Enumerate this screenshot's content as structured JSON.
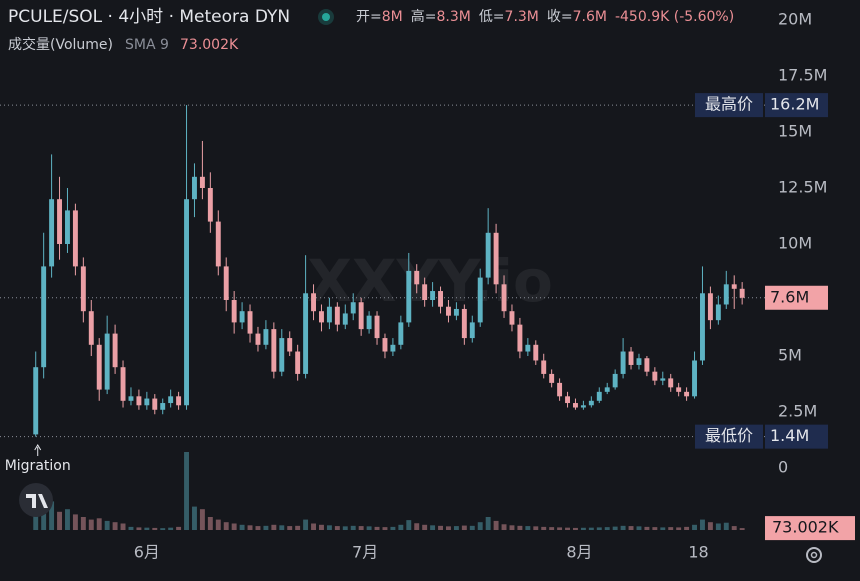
{
  "header": {
    "symbol": "PCULE/SOL · 4小时 · Meteora DYN",
    "stats": [
      {
        "label": "开=",
        "value": "8M"
      },
      {
        "label": "高=",
        "value": "8.3M"
      },
      {
        "label": "低=",
        "value": "7.3M"
      },
      {
        "label": "收=",
        "value": "7.6M"
      },
      {
        "label": "",
        "value": "-450.9K (-5.60%)"
      }
    ],
    "volume_title": "成交量(Volume)",
    "sma_name": "SMA 9",
    "sma_value": "73.002K",
    "watermark": "XXYY.io"
  },
  "chart_data": {
    "type": "candlestick",
    "open": [
      1.5,
      4.5,
      9,
      12,
      10,
      11.5,
      9,
      7,
      5.5,
      3.5,
      6,
      4.5,
      3,
      3.2,
      2.8,
      3.1,
      2.6,
      2.9,
      3.2,
      2.8,
      12,
      13,
      12.5,
      11,
      9,
      7.5,
      6.5,
      7,
      6,
      5.5,
      6.2,
      4.3,
      5.8,
      5.2,
      4.2,
      7.8,
      7,
      6.5,
      7.2,
      6.4,
      6.9,
      7.4,
      6.2,
      6.8,
      5.8,
      5.2,
      5.5,
      6.5,
      8.8,
      8.2,
      7.5,
      7.9,
      7.2,
      6.8,
      7.1,
      5.8,
      6.5,
      8.5,
      10.5,
      8.2,
      7,
      6.4,
      5.2,
      5.5,
      4.8,
      4.2,
      3.8,
      3.2,
      2.9,
      2.7,
      2.8,
      3,
      3.4,
      3.6,
      4.2,
      5.2,
      4.6,
      4.9,
      4.3,
      3.9,
      4,
      3.6,
      3.4,
      3.2,
      4.8,
      7.8,
      6.6,
      7.3,
      8.2,
      8
    ],
    "high": [
      5.2,
      10.5,
      14,
      13,
      12.5,
      11.8,
      9.4,
      7.5,
      5.8,
      6.8,
      6.4,
      4.8,
      3.6,
      3.5,
      3.4,
      3.3,
      3.1,
      3.5,
      3.4,
      16.2,
      13.6,
      14.6,
      13.2,
      11.5,
      9.4,
      7.9,
      7.4,
      7.3,
      6.3,
      6.6,
      6.5,
      6.2,
      6.1,
      5.5,
      9.5,
      8.2,
      7.3,
      7.6,
      7.4,
      7.3,
      7.8,
      7.6,
      7,
      7,
      6,
      5.8,
      6.8,
      9.6,
      9.1,
      8.5,
      8.3,
      8.1,
      7.5,
      7.4,
      7.3,
      6.8,
      8.9,
      11.6,
      10.9,
      8.6,
      7.3,
      6.7,
      5.8,
      5.7,
      5.1,
      4.4,
      4,
      3.4,
      3.1,
      3,
      3.2,
      3.6,
      3.8,
      4.4,
      5.8,
      5.4,
      5.1,
      5,
      4.5,
      4.3,
      4.2,
      3.8,
      3.6,
      5.2,
      9,
      8.1,
      7.7,
      8.8,
      8.6,
      8.3
    ],
    "low": [
      1.4,
      4,
      8.5,
      9.3,
      9.6,
      8.6,
      6.5,
      5,
      3,
      3.3,
      4.2,
      2.7,
      2.8,
      2.6,
      2.6,
      2.4,
      2.4,
      2.7,
      2.6,
      2.6,
      11.2,
      12,
      10.5,
      8.6,
      7,
      6,
      6.2,
      5.6,
      5.2,
      5.3,
      4,
      4.1,
      5,
      3.9,
      4,
      6.6,
      6.1,
      6.2,
      6.1,
      6.2,
      6.6,
      5.9,
      6,
      5.5,
      4.9,
      5,
      5.3,
      6.3,
      7.8,
      7.2,
      7.2,
      6.9,
      6.5,
      6.6,
      5.5,
      5.6,
      6.3,
      8.2,
      7.8,
      6.7,
      6.1,
      4.9,
      5,
      4.6,
      4,
      3.6,
      3,
      2.7,
      2.6,
      2.6,
      2.7,
      2.9,
      3.3,
      3.5,
      4,
      4.4,
      4.4,
      4.1,
      3.7,
      3.7,
      3.4,
      3.2,
      3,
      3.1,
      4.6,
      6.2,
      6.4,
      7.1,
      7.1,
      7.3
    ],
    "close": [
      4.5,
      9,
      12,
      10,
      11.5,
      9,
      7,
      5.5,
      3.5,
      6,
      4.5,
      3,
      3.2,
      2.8,
      3.1,
      2.6,
      2.9,
      3.2,
      2.8,
      12,
      13,
      12.5,
      11,
      9,
      7.5,
      6.5,
      7,
      6,
      5.5,
      6.2,
      4.3,
      5.8,
      5.2,
      4.2,
      7.8,
      7,
      6.5,
      7.2,
      6.4,
      6.9,
      7.4,
      6.2,
      6.8,
      5.8,
      5.2,
      5.5,
      6.5,
      8.8,
      8.2,
      7.5,
      7.9,
      7.2,
      6.8,
      7.1,
      5.8,
      6.5,
      8.5,
      10.5,
      8.2,
      7,
      6.4,
      5.2,
      5.5,
      4.8,
      4.2,
      3.8,
      3.2,
      2.9,
      2.7,
      2.8,
      3,
      3.4,
      3.6,
      4.2,
      5.2,
      4.6,
      4.9,
      4.3,
      3.9,
      4,
      3.6,
      3.4,
      3.2,
      4.8,
      7.8,
      6.6,
      7.3,
      8.2,
      8,
      7.6
    ],
    "volume": [
      900,
      1400,
      1100,
      700,
      800,
      600,
      500,
      400,
      450,
      350,
      300,
      250,
      120,
      100,
      90,
      80,
      70,
      90,
      120,
      3000,
      900,
      800,
      500,
      400,
      300,
      250,
      200,
      180,
      150,
      160,
      200,
      180,
      150,
      160,
      400,
      250,
      200,
      180,
      150,
      140,
      160,
      150,
      140,
      120,
      110,
      120,
      200,
      380,
      260,
      200,
      180,
      160,
      140,
      150,
      170,
      160,
      300,
      500,
      350,
      220,
      180,
      160,
      150,
      140,
      120,
      110,
      100,
      90,
      80,
      85,
      90,
      100,
      110,
      130,
      160,
      150,
      140,
      120,
      110,
      100,
      110,
      100,
      120,
      200,
      400,
      300,
      250,
      280,
      150,
      73.002
    ],
    "up_color": "#5eb3c3",
    "down_color": "#eba0a6",
    "xlim": [
      -4.5,
      91.5
    ],
    "xticks": [
      {
        "value": 14,
        "label": "6月"
      },
      {
        "value": 41.5,
        "label": "7月"
      },
      {
        "value": 68.5,
        "label": "8月"
      },
      {
        "value": 83.5,
        "label": "18"
      }
    ],
    "ylim": [
      0,
      20
    ],
    "yticks": [
      0,
      {
        "value": 2.5,
        "label": "2.5M"
      },
      {
        "value": 5,
        "label": "5M"
      },
      {
        "value": 7.5,
        "label": "7.5M"
      },
      {
        "value": 10,
        "label": "10M"
      },
      {
        "value": 12.5,
        "label": "12.5M"
      },
      {
        "value": 15,
        "label": "15M"
      },
      {
        "value": 17.5,
        "label": "17.5M"
      },
      {
        "value": 20,
        "label": "20M"
      }
    ],
    "high_marker": {
      "label": "最高价",
      "value": 16.2,
      "value_label": "16.2M"
    },
    "low_marker": {
      "label": "最低价",
      "value": 1.4,
      "value_label": "1.4M"
    },
    "last_price": {
      "value": 7.6,
      "label": "7.6M"
    },
    "annotation": "Migration"
  }
}
